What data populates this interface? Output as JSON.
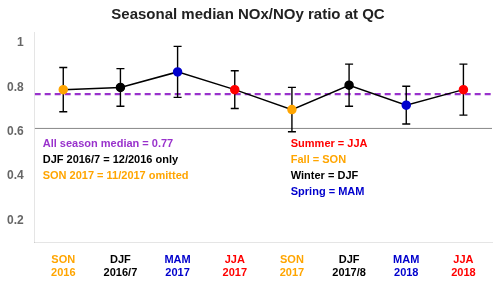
{
  "chart_data": {
    "type": "line",
    "title": "Seasonal median NOx/NOy ratio at QC",
    "categories": [
      "SON 2016",
      "DJF 2016/7",
      "MAM 2017",
      "JJA 2017",
      "SON 2017",
      "DJF 2017/8",
      "MAM 2018",
      "JJA 2018"
    ],
    "values": [
      0.79,
      0.8,
      0.87,
      0.79,
      0.7,
      0.81,
      0.72,
      0.79
    ],
    "errors": [
      0.1,
      0.085,
      0.115,
      0.085,
      0.1,
      0.095,
      0.085,
      0.115
    ],
    "color": "#000000",
    "colors": [
      "#FFA500",
      "#000000",
      "#0000CD",
      "#FF0000",
      "#FFA500",
      "#000000",
      "#0000CD",
      "#FF0000"
    ],
    "marker": "circle",
    "reference_lines": [
      {
        "value": 0.77,
        "color": "#9932CC",
        "line_style": "dashed"
      },
      {
        "value": 0.615,
        "color": "#888888",
        "line_style": "solid"
      }
    ],
    "annotations": [
      [
        {
          "text": "All season median = 0.77",
          "color": "#9932CC"
        },
        {
          "text": "DJF 2016/7 = 12/2016 only",
          "color": "#000000"
        },
        {
          "text": "SON 2017 = 11/2017 omitted",
          "color": "#FFA500"
        }
      ],
      [
        {
          "text": "Summer = JJA",
          "color": "#FF0000"
        },
        {
          "text": "Fall = SON",
          "color": "#FFA500"
        },
        {
          "text": "Winter = DJF",
          "color": "#000000"
        },
        {
          "text": "Spring = MAM",
          "color": "#0000CD"
        }
      ]
    ],
    "ylim": [
      0.1,
      1.05
    ],
    "yticks": [
      0.2,
      0.4,
      0.6,
      0.8,
      1
    ],
    "grid": false
  }
}
